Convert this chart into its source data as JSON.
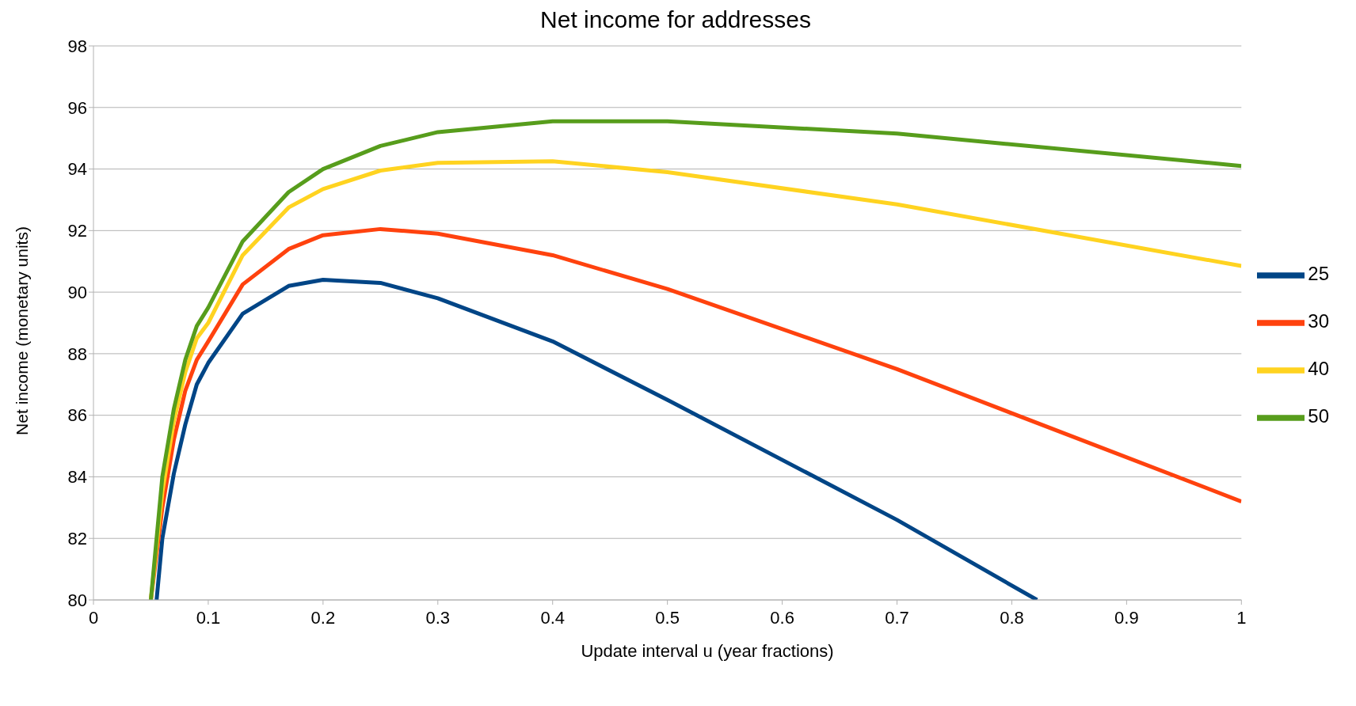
{
  "chart_data": {
    "type": "line",
    "title": "Net income for addresses",
    "xlabel": "Update interval u (year fractions)",
    "ylabel": "Net income (monetary units)",
    "xlim": [
      0,
      1
    ],
    "xticks": [
      0,
      0.1,
      0.2,
      0.3,
      0.4,
      0.5,
      0.6,
      0.7,
      0.8,
      0.9,
      1
    ],
    "ylim": [
      80,
      98
    ],
    "yticks": [
      80,
      82,
      84,
      86,
      88,
      90,
      92,
      94,
      96,
      98
    ],
    "grid": "y",
    "legend": "right",
    "marker": "none",
    "line_style": "solid",
    "series": [
      {
        "name": "25",
        "color": "#004586",
        "x": [
          0.055,
          0.06,
          0.07,
          0.08,
          0.09,
          0.1,
          0.13,
          0.17,
          0.2,
          0.25,
          0.3,
          0.4,
          0.5,
          0.7,
          0.822
        ],
        "values": [
          80,
          82,
          84.1,
          85.7,
          87,
          87.7,
          89.3,
          90.2,
          90.4,
          90.3,
          89.8,
          88.4,
          86.5,
          82.6,
          80
        ]
      },
      {
        "name": "30",
        "color": "#ff420e",
        "x": [
          0.05,
          0.06,
          0.07,
          0.08,
          0.09,
          0.1,
          0.13,
          0.17,
          0.2,
          0.25,
          0.3,
          0.4,
          0.5,
          0.7,
          1
        ],
        "values": [
          80,
          83,
          85.2,
          86.8,
          87.8,
          88.4,
          90.25,
          91.4,
          91.85,
          92.05,
          91.9,
          91.2,
          90.1,
          87.5,
          83.2
        ]
      },
      {
        "name": "40",
        "color": "#ffd320",
        "x": [
          0.05,
          0.06,
          0.07,
          0.08,
          0.09,
          0.1,
          0.13,
          0.17,
          0.2,
          0.25,
          0.3,
          0.4,
          0.5,
          0.7,
          1
        ],
        "values": [
          80,
          83.5,
          85.8,
          87.4,
          88.5,
          89,
          91.2,
          92.75,
          93.35,
          93.95,
          94.2,
          94.25,
          93.9,
          92.85,
          90.85
        ]
      },
      {
        "name": "50",
        "color": "#579d1c",
        "x": [
          0.05,
          0.06,
          0.07,
          0.08,
          0.09,
          0.1,
          0.13,
          0.17,
          0.2,
          0.25,
          0.3,
          0.4,
          0.5,
          0.7,
          1
        ],
        "values": [
          80,
          84,
          86.2,
          87.8,
          88.9,
          89.5,
          91.65,
          93.25,
          94,
          94.75,
          95.2,
          95.55,
          95.55,
          95.15,
          94.1
        ]
      }
    ]
  }
}
